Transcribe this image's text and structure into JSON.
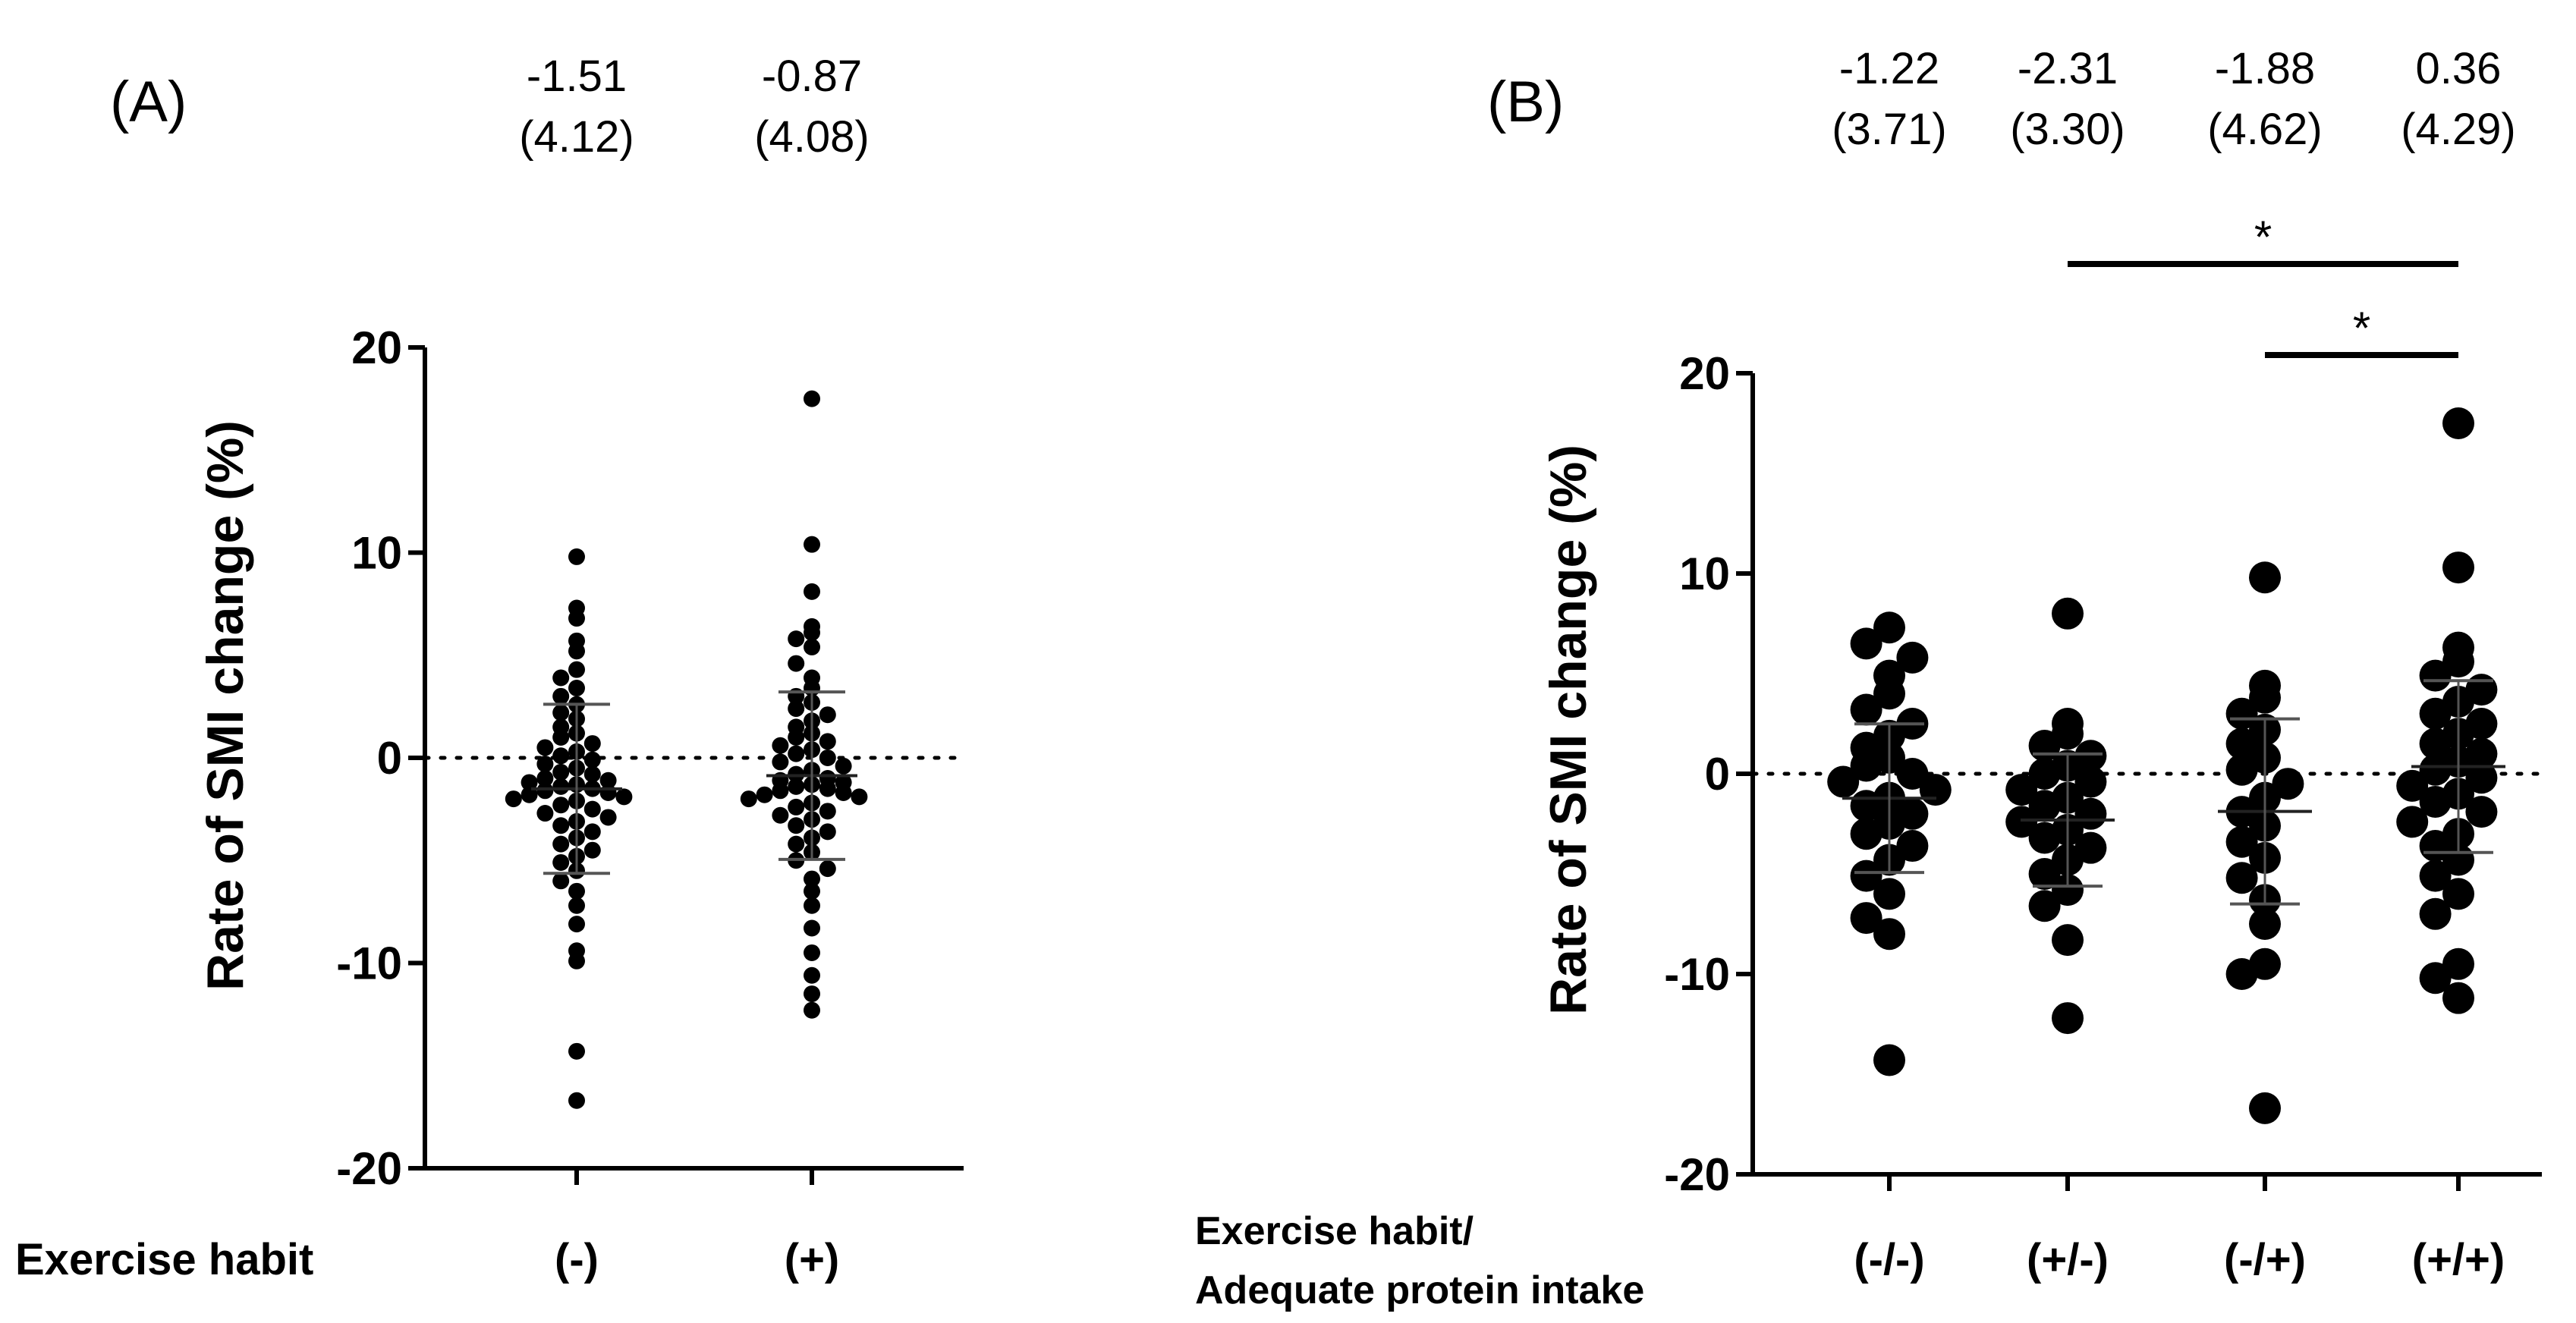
{
  "chart_data": [
    {
      "panel": "(A)",
      "type": "scatter",
      "subtype": "dot-plot with mean ± SD",
      "ylabel": "Rate of SMI change (%)",
      "ylim": [
        -20,
        20
      ],
      "yticks": [
        20,
        10,
        0,
        -10,
        -20
      ],
      "ytick_labels": [
        "20",
        "10",
        "0",
        "-10",
        "-20"
      ],
      "grouping_label": "Exercise habit",
      "reference_line": 0,
      "groups": [
        {
          "label": "(-)",
          "mean_text": "-1.51",
          "sd_text": "(4.12)",
          "mean": -1.51,
          "sd": 4.12,
          "points": [
            9.8,
            7.3,
            6.8,
            5.7,
            5.2,
            4.3,
            3.9,
            3.4,
            3.0,
            2.6,
            2.2,
            1.9,
            1.5,
            1.2,
            1.0,
            0.7,
            0.5,
            0.3,
            0.1,
            -0.1,
            -0.3,
            -0.5,
            -0.7,
            -0.8,
            -1.0,
            -1.1,
            -1.2,
            -1.3,
            -1.4,
            -1.5,
            -1.6,
            -1.7,
            -1.8,
            -1.9,
            -2.0,
            -2.1,
            -2.3,
            -2.5,
            -2.7,
            -2.9,
            -3.1,
            -3.3,
            -3.6,
            -3.9,
            -4.2,
            -4.5,
            -4.8,
            -5.1,
            -5.5,
            -6.0,
            -6.5,
            -7.2,
            -8.1,
            -9.4,
            -9.9,
            -14.3,
            -16.7
          ]
        },
        {
          "label": "(+)",
          "mean_text": "-0.87",
          "sd_text": "(4.08)",
          "mean": -0.87,
          "sd": 4.08,
          "points": [
            17.5,
            10.4,
            8.1,
            6.4,
            6.1,
            5.8,
            5.4,
            4.6,
            3.9,
            3.4,
            3.0,
            2.7,
            2.4,
            2.1,
            1.8,
            1.5,
            1.2,
            1.0,
            0.8,
            0.6,
            0.4,
            0.2,
            0.0,
            -0.2,
            -0.4,
            -0.6,
            -0.8,
            -1.0,
            -1.1,
            -1.2,
            -1.3,
            -1.4,
            -1.5,
            -1.6,
            -1.7,
            -1.8,
            -1.9,
            -2.0,
            -2.2,
            -2.4,
            -2.6,
            -2.8,
            -3.0,
            -3.3,
            -3.6,
            -3.9,
            -4.2,
            -4.6,
            -5.0,
            -5.4,
            -5.9,
            -6.5,
            -7.2,
            -8.3,
            -9.5,
            -10.6,
            -11.5,
            -12.3
          ]
        }
      ]
    },
    {
      "panel": "(B)",
      "type": "scatter",
      "subtype": "dot-plot with mean ± SD",
      "ylabel": "Rate of SMI change (%)",
      "ylim": [
        -20,
        20
      ],
      "yticks": [
        20,
        10,
        0,
        -10,
        -20
      ],
      "ytick_labels": [
        "20",
        "10",
        "0",
        "-10",
        "-20"
      ],
      "grouping_label_line1": "Exercise habit/",
      "grouping_label_line2": "Adequate protein intake",
      "reference_line": 0,
      "groups": [
        {
          "label": "(-/-)",
          "mean_text": "-1.22",
          "sd_text": "(3.71)",
          "mean": -1.22,
          "sd": 3.71,
          "points": [
            7.3,
            6.5,
            5.8,
            4.9,
            4.0,
            3.2,
            2.5,
            1.9,
            1.3,
            0.8,
            0.4,
            0.0,
            -0.4,
            -0.8,
            -1.2,
            -1.6,
            -2.0,
            -2.5,
            -3.0,
            -3.6,
            -4.3,
            -5.1,
            -6.0,
            -7.2,
            -8.0,
            -14.3
          ]
        },
        {
          "label": "(+/-)",
          "mean_text": "-2.31",
          "sd_text": "(3.30)",
          "mean": -2.31,
          "sd": 3.3,
          "points": [
            8.0,
            2.5,
            2.0,
            1.4,
            0.9,
            0.4,
            0.0,
            -0.4,
            -0.8,
            -1.2,
            -1.6,
            -2.0,
            -2.4,
            -2.8,
            -3.2,
            -3.7,
            -4.3,
            -5.0,
            -5.8,
            -6.6,
            -8.3,
            -12.2
          ]
        },
        {
          "label": "(-/+)",
          "mean_text": "-1.88",
          "sd_text": "(4.62)",
          "mean": -1.88,
          "sd": 4.62,
          "points": [
            9.8,
            4.4,
            3.8,
            3.0,
            2.2,
            1.5,
            0.8,
            0.2,
            -0.5,
            -1.2,
            -1.9,
            -2.6,
            -3.4,
            -4.2,
            -5.2,
            -6.3,
            -7.5,
            -9.5,
            -10.0,
            -16.7
          ]
        },
        {
          "label": "(+/+)",
          "mean_text": "0.36",
          "sd_text": "(4.29)",
          "mean": 0.36,
          "sd": 4.29,
          "points": [
            17.5,
            10.3,
            6.3,
            5.6,
            4.9,
            4.2,
            3.6,
            3.0,
            2.5,
            2.0,
            1.5,
            1.0,
            0.6,
            0.2,
            -0.2,
            -0.6,
            -1.0,
            -1.4,
            -1.9,
            -2.4,
            -3.0,
            -3.6,
            -4.3,
            -5.1,
            -6.0,
            -7.0,
            -9.5,
            -10.2,
            -11.2
          ]
        }
      ],
      "significance": [
        {
          "from": "(+/-)",
          "to": "(+/+)",
          "label": "*"
        },
        {
          "from": "(-/+)",
          "to": "(+/+)",
          "label": "*"
        }
      ]
    }
  ]
}
